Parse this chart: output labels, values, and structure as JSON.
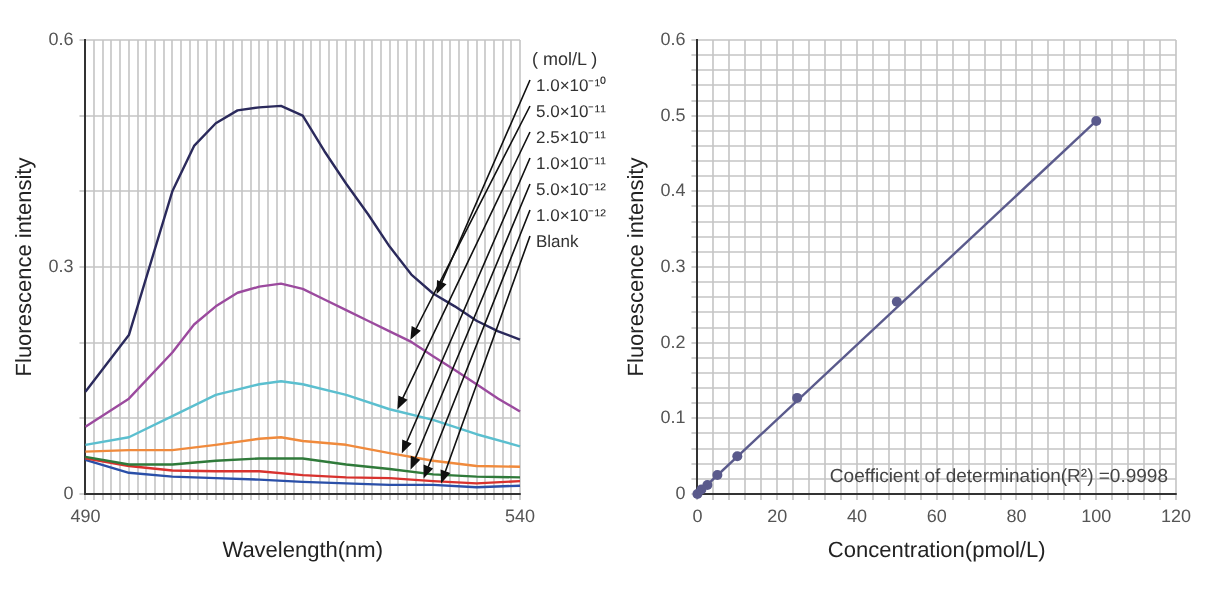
{
  "chart_data": [
    {
      "type": "line",
      "xlabel": "Wavelength(nm)",
      "ylabel": "Fluorescence intensity",
      "legend_title": "( mol/L )",
      "legend": "right",
      "grid": true,
      "marker": "none",
      "xlim": [
        490,
        540
      ],
      "ylim": [
        0,
        0.6
      ],
      "xticks": [
        490,
        {
          "value": 491,
          "label": null
        },
        {
          "value": 492,
          "label": null
        },
        {
          "value": 493,
          "label": null
        },
        {
          "value": 494,
          "label": null
        },
        {
          "value": 495,
          "label": null
        },
        {
          "value": 496,
          "label": null
        },
        {
          "value": 497,
          "label": null
        },
        {
          "value": 498,
          "label": null
        },
        {
          "value": 499,
          "label": null
        },
        {
          "value": 500,
          "label": null
        },
        {
          "value": 501,
          "label": null
        },
        {
          "value": 502,
          "label": null
        },
        {
          "value": 503,
          "label": null
        },
        {
          "value": 504,
          "label": null
        },
        {
          "value": 505,
          "label": null
        },
        {
          "value": 506,
          "label": null
        },
        {
          "value": 507,
          "label": null
        },
        {
          "value": 508,
          "label": null
        },
        {
          "value": 509,
          "label": null
        },
        {
          "value": 510,
          "label": null
        },
        {
          "value": 511,
          "label": null
        },
        {
          "value": 512,
          "label": null
        },
        {
          "value": 513,
          "label": null
        },
        {
          "value": 514,
          "label": null
        },
        {
          "value": 515,
          "label": null
        },
        {
          "value": 516,
          "label": null
        },
        {
          "value": 517,
          "label": null
        },
        {
          "value": 518,
          "label": null
        },
        {
          "value": 519,
          "label": null
        },
        {
          "value": 520,
          "label": null
        },
        {
          "value": 521,
          "label": null
        },
        {
          "value": 522,
          "label": null
        },
        {
          "value": 523,
          "label": null
        },
        {
          "value": 524,
          "label": null
        },
        {
          "value": 525,
          "label": null
        },
        {
          "value": 526,
          "label": null
        },
        {
          "value": 527,
          "label": null
        },
        {
          "value": 528,
          "label": null
        },
        {
          "value": 529,
          "label": null
        },
        {
          "value": 530,
          "label": null
        },
        {
          "value": 531,
          "label": null
        },
        {
          "value": 532,
          "label": null
        },
        {
          "value": 533,
          "label": null
        },
        {
          "value": 534,
          "label": null
        },
        {
          "value": 535,
          "label": null
        },
        {
          "value": 536,
          "label": null
        },
        {
          "value": 537,
          "label": null
        },
        {
          "value": 538,
          "label": null
        },
        {
          "value": 539,
          "label": null
        },
        540
      ],
      "yticks": [
        0,
        {
          "value": 0.1,
          "label": null
        },
        {
          "value": 0.2,
          "label": null
        },
        0.3,
        {
          "value": 0.4,
          "label": null
        },
        {
          "value": 0.5,
          "label": null
        },
        0.6
      ],
      "series": [
        {
          "name": "1.0×10⁻¹⁰",
          "color": "#2b2a5c",
          "x": [
            490,
            495,
            500,
            502.5,
            505,
            507.5,
            510,
            512.5,
            515,
            517.5,
            520,
            522.5,
            525,
            527.5,
            530,
            532.5,
            535,
            537.5,
            540
          ],
          "values": [
            0.135,
            0.21,
            0.4,
            0.46,
            0.49,
            0.507,
            0.511,
            0.513,
            0.5,
            0.453,
            0.41,
            0.37,
            0.327,
            0.29,
            0.265,
            0.248,
            0.229,
            0.215,
            0.204
          ]
        },
        {
          "name": "5.0×10⁻¹¹",
          "color": "#9b4a9e",
          "x": [
            490,
            495,
            500,
            502.5,
            505,
            507.5,
            510,
            512.5,
            515,
            517.5,
            520,
            522.5,
            525,
            527.5,
            530,
            532.5,
            535,
            537.5,
            540
          ],
          "values": [
            0.089,
            0.126,
            0.187,
            0.224,
            0.248,
            0.266,
            0.274,
            0.278,
            0.271,
            0.257,
            0.243,
            0.229,
            0.215,
            0.201,
            0.182,
            0.164,
            0.145,
            0.126,
            0.109
          ]
        },
        {
          "name": "2.5×10⁻¹¹",
          "color": "#5bbfcf",
          "x": [
            490,
            495,
            500,
            505,
            510,
            512.5,
            515,
            520,
            525,
            530,
            535,
            540
          ],
          "values": [
            0.065,
            0.075,
            0.103,
            0.131,
            0.145,
            0.149,
            0.145,
            0.131,
            0.112,
            0.098,
            0.079,
            0.063
          ]
        },
        {
          "name": "1.0×10⁻¹¹",
          "color": "#f08a3c",
          "x": [
            490,
            495,
            500,
            505,
            510,
            512.5,
            515,
            520,
            525,
            530,
            535,
            540
          ],
          "values": [
            0.056,
            0.058,
            0.058,
            0.065,
            0.073,
            0.075,
            0.07,
            0.065,
            0.054,
            0.044,
            0.037,
            0.036
          ]
        },
        {
          "name": "5.0×10⁻¹²",
          "color": "#2f7a3a",
          "x": [
            490,
            495,
            500,
            505,
            510,
            515,
            520,
            525,
            530,
            535,
            540
          ],
          "values": [
            0.049,
            0.039,
            0.039,
            0.044,
            0.047,
            0.047,
            0.039,
            0.033,
            0.026,
            0.023,
            0.022
          ]
        },
        {
          "name": "1.0×10⁻¹²",
          "color": "#d8322e",
          "x": [
            490,
            495,
            500,
            505,
            510,
            515,
            520,
            525,
            530,
            535,
            540
          ],
          "values": [
            0.047,
            0.037,
            0.031,
            0.03,
            0.03,
            0.025,
            0.022,
            0.021,
            0.017,
            0.014,
            0.017
          ]
        },
        {
          "name": "Blank",
          "color": "#2a4fa8",
          "x": [
            490,
            495,
            500,
            505,
            510,
            515,
            520,
            525,
            530,
            535,
            540
          ],
          "values": [
            0.045,
            0.028,
            0.023,
            0.021,
            0.019,
            0.016,
            0.014,
            0.012,
            0.012,
            0.009,
            0.011
          ]
        }
      ]
    },
    {
      "type": "scatter",
      "xlabel": "Concentration(pmol/L)",
      "ylabel": "Fluorescence intensity",
      "grid": true,
      "marker": "circle",
      "annotations": [
        "Coefficient of determination(R²) =0.9998"
      ],
      "xlim": [
        0,
        120
      ],
      "ylim": [
        0,
        0.6
      ],
      "xticks": [
        0,
        {
          "value": 4,
          "label": null
        },
        {
          "value": 8,
          "label": null
        },
        {
          "value": 12,
          "label": null
        },
        {
          "value": 16,
          "label": null
        },
        20,
        {
          "value": 24,
          "label": null
        },
        {
          "value": 28,
          "label": null
        },
        {
          "value": 32,
          "label": null
        },
        {
          "value": 36,
          "label": null
        },
        40,
        {
          "value": 44,
          "label": null
        },
        {
          "value": 48,
          "label": null
        },
        {
          "value": 52,
          "label": null
        },
        {
          "value": 56,
          "label": null
        },
        60,
        {
          "value": 64,
          "label": null
        },
        {
          "value": 68,
          "label": null
        },
        {
          "value": 72,
          "label": null
        },
        {
          "value": 76,
          "label": null
        },
        80,
        {
          "value": 84,
          "label": null
        },
        {
          "value": 88,
          "label": null
        },
        {
          "value": 92,
          "label": null
        },
        {
          "value": 96,
          "label": null
        },
        100,
        {
          "value": 104,
          "label": null
        },
        {
          "value": 108,
          "label": null
        },
        {
          "value": 112,
          "label": null
        },
        {
          "value": 116,
          "label": null
        },
        120
      ],
      "yticks": [
        0,
        {
          "value": 0.02,
          "label": null
        },
        {
          "value": 0.04,
          "label": null
        },
        {
          "value": 0.06,
          "label": null
        },
        {
          "value": 0.08,
          "label": null
        },
        0.1,
        {
          "value": 0.12,
          "label": null
        },
        {
          "value": 0.14,
          "label": null
        },
        {
          "value": 0.16,
          "label": null
        },
        {
          "value": 0.18,
          "label": null
        },
        0.2,
        {
          "value": 0.22,
          "label": null
        },
        {
          "value": 0.24,
          "label": null
        },
        {
          "value": 0.26,
          "label": null
        },
        {
          "value": 0.28,
          "label": null
        },
        0.3,
        {
          "value": 0.32,
          "label": null
        },
        {
          "value": 0.34,
          "label": null
        },
        {
          "value": 0.36,
          "label": null
        },
        {
          "value": 0.38,
          "label": null
        },
        0.4,
        {
          "value": 0.42,
          "label": null
        },
        {
          "value": 0.44,
          "label": null
        },
        {
          "value": 0.46,
          "label": null
        },
        {
          "value": 0.48,
          "label": null
        },
        0.5,
        {
          "value": 0.52,
          "label": null
        },
        {
          "value": 0.54,
          "label": null
        },
        {
          "value": 0.56,
          "label": null
        },
        {
          "value": 0.58,
          "label": null
        },
        0.6
      ],
      "series": [
        {
          "type": "line",
          "marker": "none",
          "color": "#5a5a8c",
          "x": [
            0,
            100
          ],
          "values": [
            0,
            0.493
          ]
        },
        {
          "color": "#5a5a8c",
          "x": [
            0,
            1,
            2.5,
            5,
            10,
            25,
            50,
            100
          ],
          "values": [
            0,
            0.006,
            0.012,
            0.025,
            0.05,
            0.127,
            0.254,
            0.493
          ]
        }
      ]
    }
  ]
}
